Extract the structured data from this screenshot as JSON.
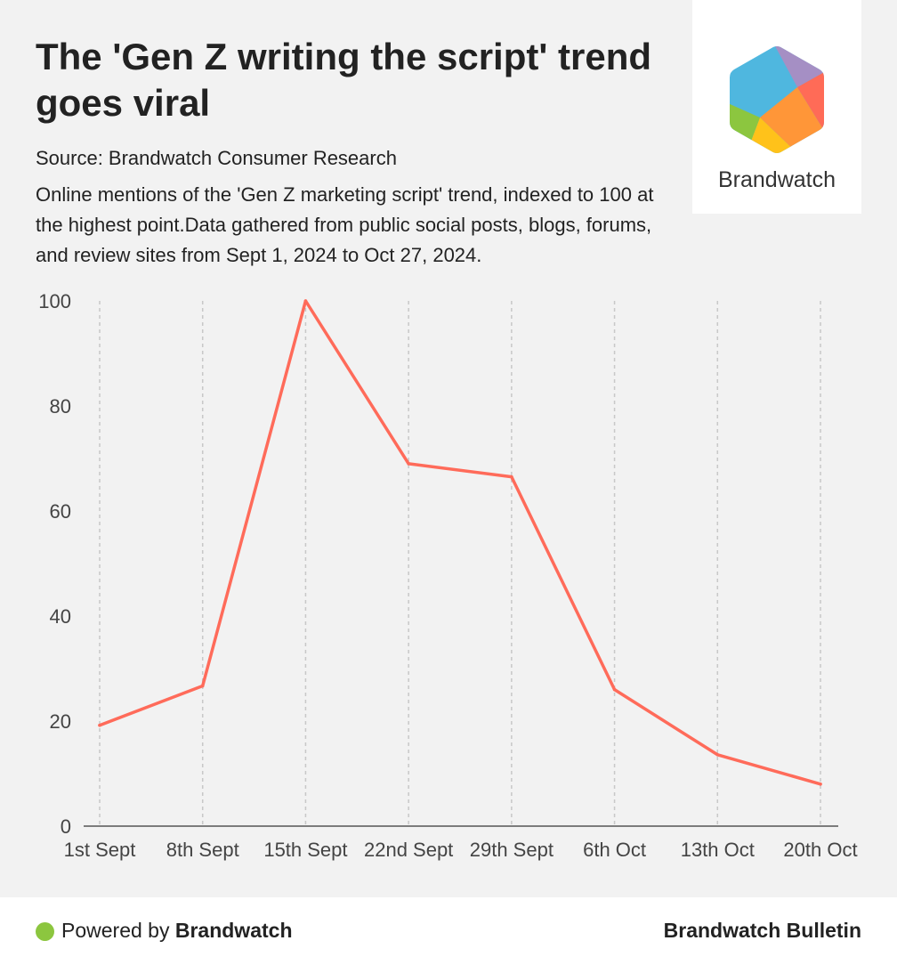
{
  "header": {
    "title": "The 'Gen Z writing the script' trend goes viral",
    "source": "Source: Brandwatch Consumer Research",
    "description": "Online mentions of the 'Gen Z marketing script' trend, indexed to 100 at the highest point.Data gathered from public social posts, blogs, forums, and review sites from Sept 1, 2024 to Oct 27, 2024."
  },
  "logo": {
    "name": "Brandwatch",
    "icon": "brandwatch-hexagon-logo",
    "colors": [
      "#4fb7df",
      "#a58fc4",
      "#ff6b57",
      "#ff9638",
      "#ffc21a",
      "#8cc63f"
    ]
  },
  "chart_data": {
    "type": "line",
    "categories": [
      "1st Sept",
      "8th Sept",
      "15th Sept",
      "22nd Sept",
      "29th Sept",
      "6th Oct",
      "13th Oct",
      "20th Oct"
    ],
    "series": [
      {
        "values": [
          19.2,
          26.7,
          100,
          69,
          66.5,
          26,
          13.6,
          8
        ]
      }
    ],
    "ylim": [
      0,
      100
    ],
    "yticks": [
      0,
      20,
      40,
      60,
      80,
      100
    ],
    "xlabel": "",
    "ylabel": "",
    "grid": "vertical-dashed",
    "line_color": "#ff6b5a"
  },
  "footer": {
    "powered_prefix": "Powered by",
    "powered_brand": "Brandwatch",
    "right_label": "Brandwatch Bulletin",
    "dot_color": "#8cc63f"
  }
}
